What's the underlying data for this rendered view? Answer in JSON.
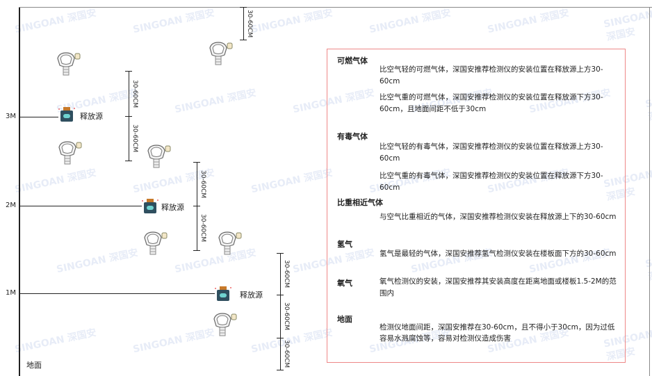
{
  "levels": {
    "m3": "3M",
    "m2": "2M",
    "m1": "1M",
    "ground": "地面"
  },
  "source_label": "释放源",
  "dimension_label": "30-60CM",
  "watermark": "SINGOAN 深国安",
  "panel": {
    "combustible": {
      "title": "可燃气体",
      "lighter": "比空气轻的可燃气体，深国安推荐检测仪的安装位置在释放源上方30-60cm",
      "heavier": "比空气重的可燃气体，深国安推荐检测仪的安装位置在释放源下方30-60cm，且地面间距不低于30cm"
    },
    "toxic": {
      "title": "有毒气体",
      "lighter": "比空气轻的有毒气体，深国安推荐检测仪的安装位置在释放源上方30-60cm",
      "heavier": "比空气重的有毒气体，深国安推荐检测仪的安装位置在释放源下方30-60cm"
    },
    "similar": {
      "title": "比重相近气体",
      "text": "与空气比重相近的气体，深国安推荐检测仪安装在释放源上下的30-60cm"
    },
    "hydrogen": {
      "title": "氢气",
      "text": "氢气是最轻的气体，深国安推荐氢气检测仪安装在楼板面下方的30-60cm"
    },
    "oxygen": {
      "title": "氧气",
      "text": "氧气检测仪的安装，深国安推荐其安装高度在距离地面或楼板1.5-2M的范围内"
    },
    "ground": {
      "title": "地面",
      "text": "检测仪地面间距，深国安推荐在30-60cm，且不得小于30cm，因为过低容易水溅腐蚀等，容易对检测仪造成伤害"
    }
  }
}
